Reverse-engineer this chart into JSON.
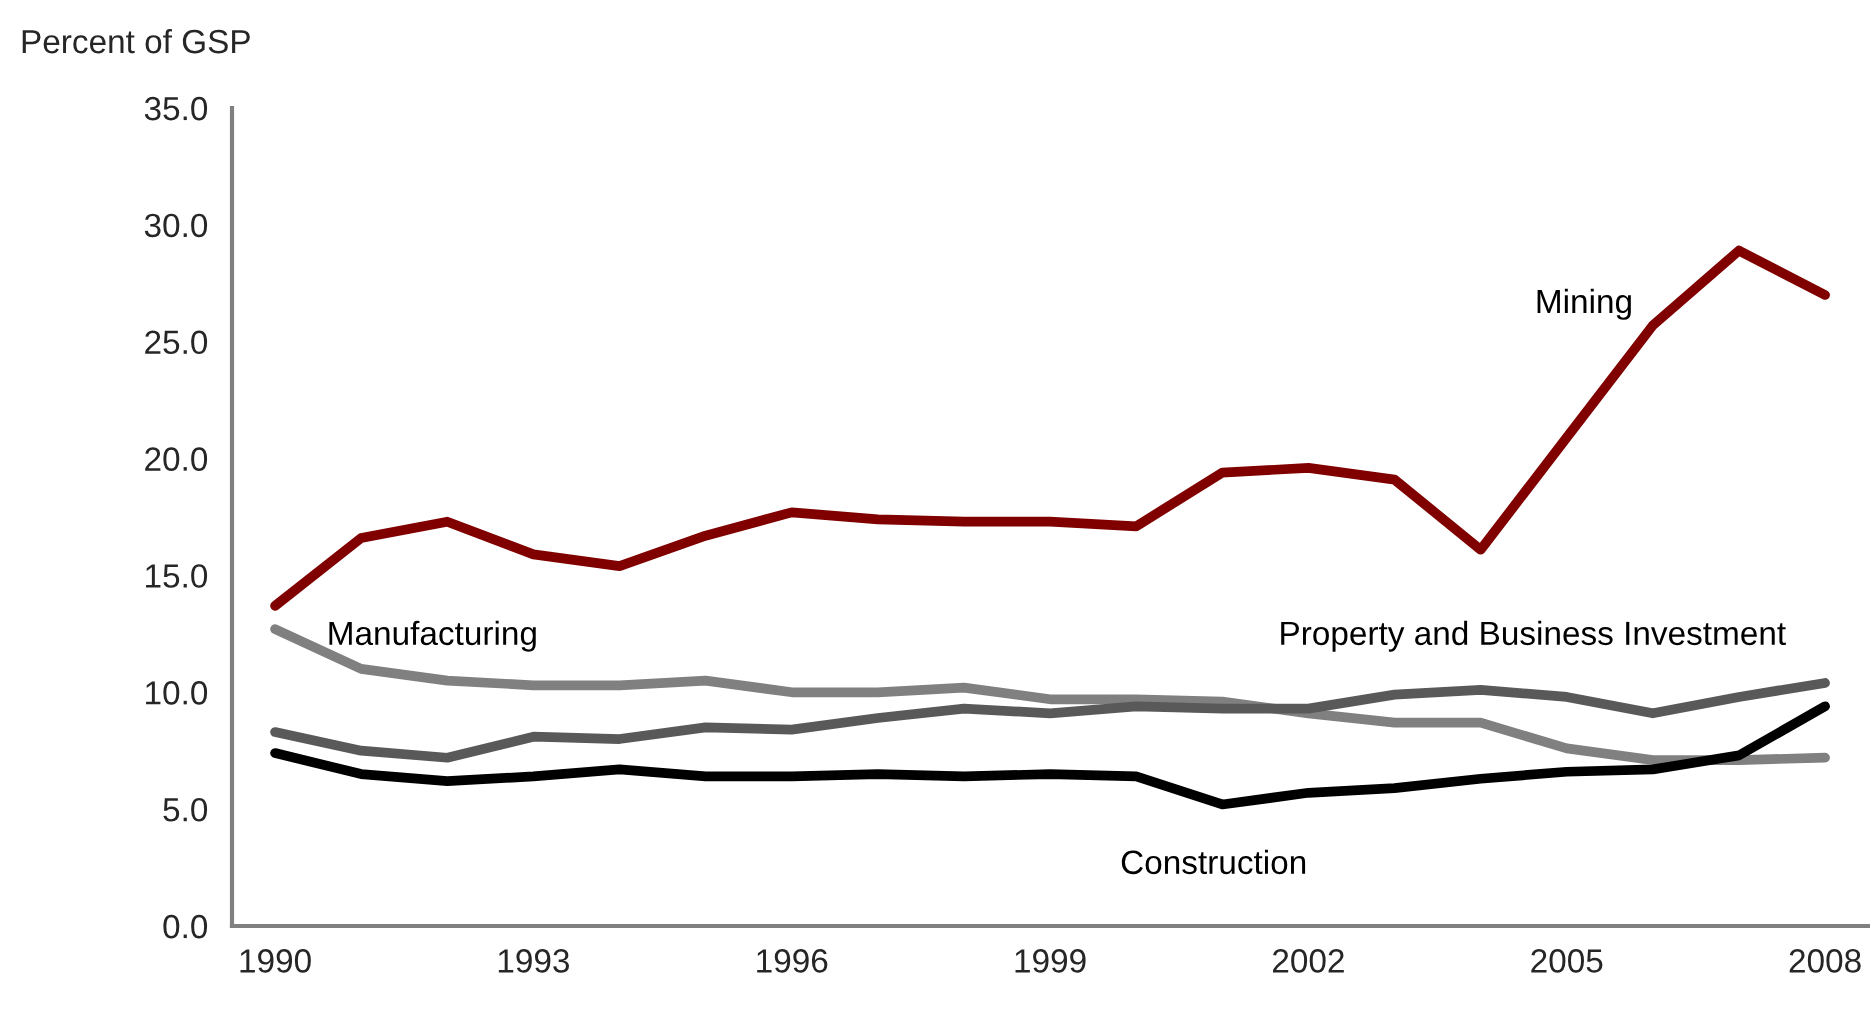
{
  "chart_data": {
    "type": "line",
    "ylabel": "Percent of GSP",
    "categories": [
      "1990",
      null,
      null,
      "1993",
      null,
      null,
      "1996",
      null,
      null,
      "1999",
      null,
      null,
      "2002",
      null,
      null,
      "2005",
      null,
      null,
      "2008"
    ],
    "ylim": [
      0,
      35
    ],
    "yticks": [
      {
        "value": 0,
        "label": "0.0"
      },
      {
        "value": 5,
        "label": "5.0"
      },
      {
        "value": 10,
        "label": "10.0"
      },
      {
        "value": 15,
        "label": "15.0"
      },
      {
        "value": 20,
        "label": "20.0"
      },
      {
        "value": 25,
        "label": "25.0"
      },
      {
        "value": 30,
        "label": "30.0"
      },
      {
        "value": 35,
        "label": "35.0"
      }
    ],
    "grid": false,
    "legend": false,
    "marker": "none",
    "line_style": "solid",
    "series": [
      {
        "name": "Mining",
        "color": "#800000",
        "values": [
          13.7,
          16.6,
          17.3,
          15.9,
          15.4,
          16.7,
          17.7,
          17.4,
          17.3,
          17.3,
          17.1,
          19.4,
          19.6,
          19.1,
          16.1,
          20.9,
          25.7,
          28.9,
          27.0
        ]
      },
      {
        "name": "Manufacturing",
        "color": "#808080",
        "values": [
          12.7,
          11.0,
          10.5,
          10.3,
          10.3,
          10.5,
          10.0,
          10.0,
          10.2,
          9.7,
          9.7,
          9.6,
          9.1,
          8.7,
          8.7,
          7.6,
          7.1,
          7.1,
          7.2
        ]
      },
      {
        "name": "Property and Business Investment",
        "color": "#595959",
        "values": [
          8.3,
          7.5,
          7.2,
          8.1,
          8.0,
          8.5,
          8.4,
          8.9,
          9.3,
          9.1,
          9.4,
          9.3,
          9.3,
          9.9,
          10.1,
          9.8,
          9.1,
          9.8,
          10.4
        ]
      },
      {
        "name": "Construction",
        "color": "#000000",
        "values": [
          7.4,
          6.5,
          6.2,
          6.4,
          6.7,
          6.4,
          6.4,
          6.5,
          6.4,
          6.5,
          6.4,
          5.2,
          5.7,
          5.9,
          6.3,
          6.6,
          6.7,
          7.3,
          9.4
        ]
      }
    ]
  }
}
